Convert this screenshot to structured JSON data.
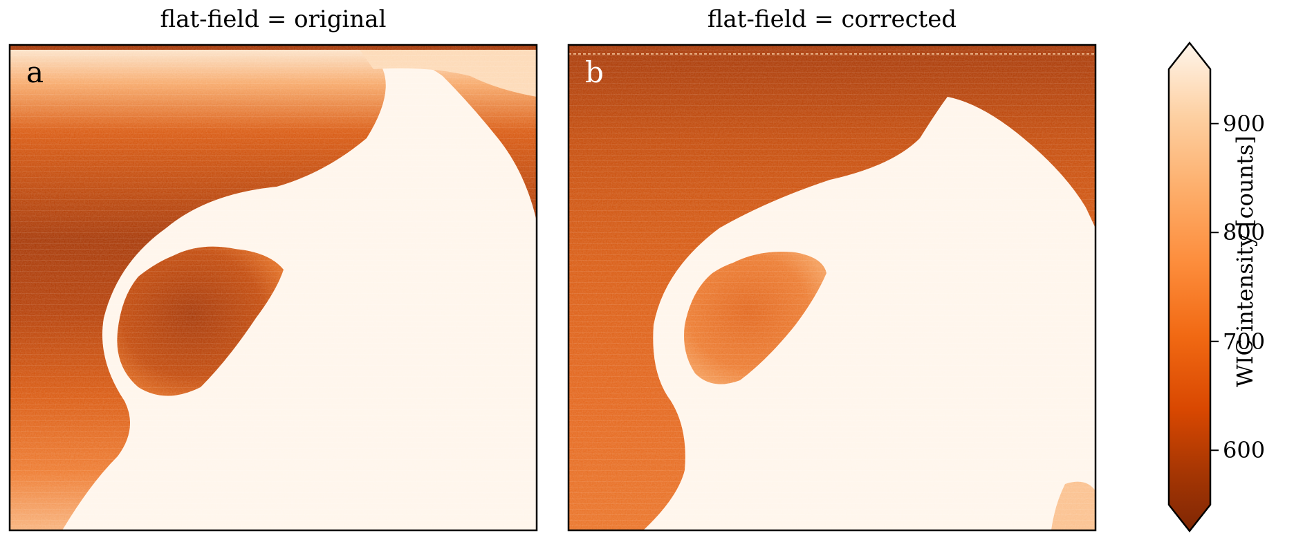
{
  "chart_data": {
    "type": "heatmap",
    "panels": [
      {
        "title": "flat-field = original",
        "panel_label": "a",
        "label_color": "#000000",
        "description": "original flat-field; dark upper-left, bright lower-right auroral region"
      },
      {
        "title": "flat-field = corrected",
        "panel_label": "b",
        "label_color": "#ffffff",
        "description": "corrected flat-field; more uniform dark background"
      }
    ],
    "colorbar": {
      "label": "WIC intensity [counts]",
      "ticks": [
        600,
        700,
        800,
        900
      ],
      "range": [
        550,
        950
      ],
      "extend": "both",
      "colormap": "Oranges_r",
      "color_low": "#7f2704",
      "color_high": "#fff5eb"
    },
    "grid": false
  }
}
